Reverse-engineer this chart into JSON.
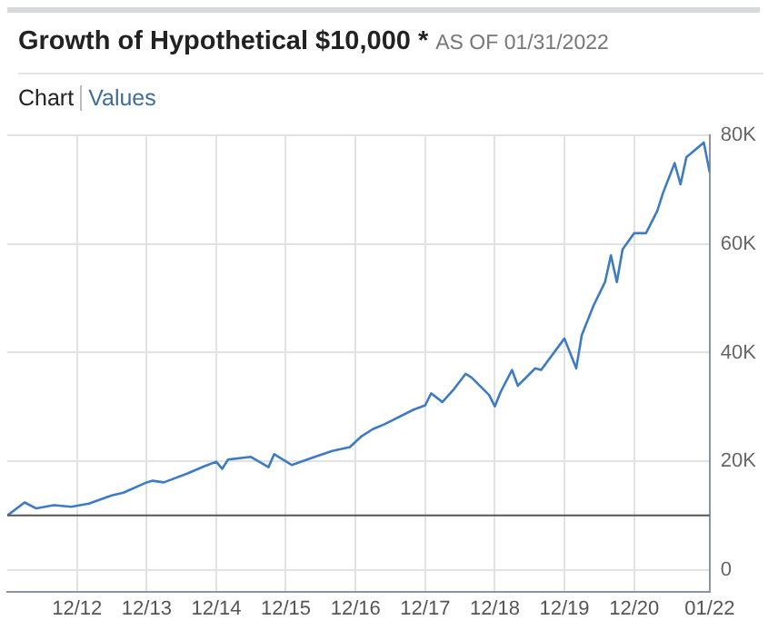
{
  "chart_data": {
    "type": "line",
    "title": "Growth of Hypothetical $10,000 *",
    "subtitle": "AS OF 01/31/2022",
    "annotations": [
      "Chart",
      "Values"
    ],
    "x": [
      "2011-12",
      "2012-03",
      "2012-05",
      "2012-08",
      "2012-11",
      "2013-02",
      "2013-06",
      "2013-08",
      "2013-12",
      "2014-01",
      "2014-03",
      "2014-07",
      "2014-10",
      "2014-12",
      "2015-01",
      "2015-02",
      "2015-06",
      "2015-09",
      "2015-10",
      "2016-01",
      "2016-05",
      "2016-08",
      "2016-11",
      "2017-01",
      "2017-03",
      "2017-05",
      "2017-10",
      "2017-12",
      "2018-01",
      "2018-03",
      "2018-05",
      "2018-07",
      "2018-08",
      "2018-11",
      "2018-12",
      "2019-01",
      "2019-03",
      "2019-04",
      "2019-07",
      "2019-08",
      "2019-12",
      "2020-02",
      "2020-03",
      "2020-05",
      "2020-07",
      "2020-08",
      "2020-09",
      "2020-10",
      "2020-12",
      "2021-02",
      "2021-04",
      "2021-05",
      "2021-07",
      "2021-08",
      "2021-09",
      "2021-12",
      "2022-01"
    ],
    "series": [
      {
        "color": "#3d7cc4",
        "values": [
          10000,
          12400,
          11300,
          11900,
          11600,
          12200,
          13700,
          14200,
          16100,
          16400,
          16100,
          17700,
          19100,
          19900,
          18600,
          20300,
          20800,
          18900,
          21300,
          19300,
          20800,
          21900,
          22600,
          24600,
          25900,
          26800,
          29500,
          30300,
          32500,
          30900,
          33300,
          36100,
          35400,
          32200,
          30100,
          32800,
          36800,
          33900,
          37100,
          36800,
          42600,
          37100,
          43200,
          48600,
          53000,
          57900,
          53000,
          59000,
          62000,
          62000,
          66100,
          69400,
          74900,
          71000,
          76000,
          78700,
          73200
        ]
      }
    ],
    "xlim": [
      "2011-12",
      "2022-01"
    ],
    "xticks": [
      {
        "value": "2012-12",
        "label": "12/12"
      },
      {
        "value": "2013-12",
        "label": "12/13"
      },
      {
        "value": "2014-12",
        "label": "12/14"
      },
      {
        "value": "2015-12",
        "label": "12/15"
      },
      {
        "value": "2016-12",
        "label": "12/16"
      },
      {
        "value": "2017-12",
        "label": "12/17"
      },
      {
        "value": "2018-12",
        "label": "12/18"
      },
      {
        "value": "2019-12",
        "label": "12/19"
      },
      {
        "value": "2020-12",
        "label": "12/20"
      },
      {
        "value": "2022-01",
        "label": "01/22"
      }
    ],
    "ylim": [
      -4000,
      80000
    ],
    "yticks": [
      0,
      {
        "value": 20000,
        "label": "20K"
      },
      {
        "value": 40000,
        "label": "40K"
      },
      {
        "value": 60000,
        "label": "60K"
      },
      {
        "value": 80000,
        "label": "80K"
      }
    ],
    "ref_lines": [
      {
        "axis": "y",
        "value": 10000,
        "color": "#555555"
      }
    ],
    "grid": true
  }
}
